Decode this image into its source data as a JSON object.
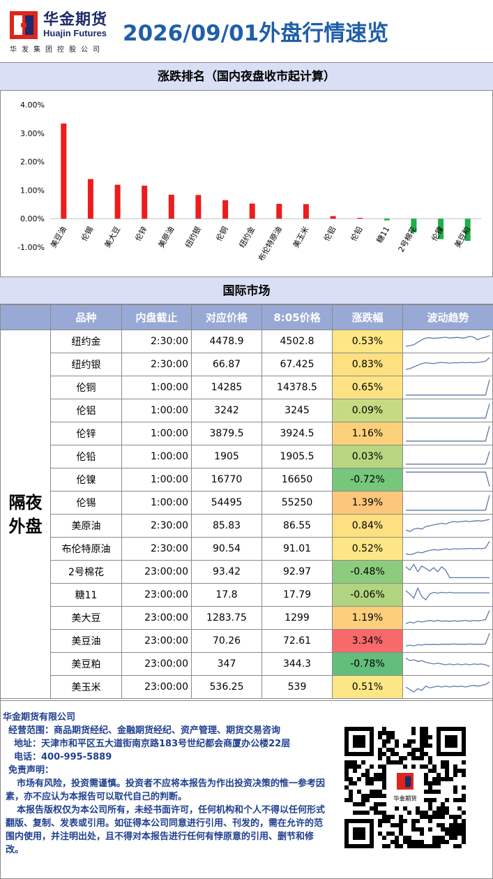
{
  "header": {
    "logo_cn": "华金期货",
    "logo_en": "Huajin Futures",
    "logo_sub": "华发集团控股公司",
    "title": "2026/09/01外盘行情速览"
  },
  "section1_title": "涨跌排名（国内夜盘收市起计算）",
  "section2_title": "国际市场",
  "colors": {
    "up": "#ee1c1c",
    "down": "#1fae4a",
    "header_bg": "#99a9d6",
    "band_bg": "#d9dff5",
    "title_blue": "#1f5fa8"
  },
  "chart_data": {
    "type": "bar",
    "categories": [
      "美豆油",
      "伦锡",
      "美大豆",
      "伦锌",
      "美原油",
      "纽约银",
      "伦铜",
      "纽约金",
      "布伦特原油",
      "美玉米",
      "伦铝",
      "伦铅",
      "糖11",
      "2号棉花",
      "伦镍",
      "美豆粕"
    ],
    "values": [
      3.34,
      1.39,
      1.19,
      1.16,
      0.84,
      0.83,
      0.65,
      0.53,
      0.52,
      0.51,
      0.09,
      0.03,
      -0.06,
      -0.48,
      -0.72,
      -0.78
    ],
    "ylim": [
      -1.0,
      4.0
    ],
    "yticks": [
      "4.00%",
      "3.00%",
      "2.00%",
      "1.00%",
      "0.00%",
      "-1.00%"
    ],
    "ytick_values": [
      4,
      3,
      2,
      1,
      0,
      -1
    ]
  },
  "table": {
    "headers": [
      "品种",
      "内盘截止",
      "对应价格",
      "8:05价格",
      "涨跌幅",
      "波动趋势"
    ],
    "group_label_line1": "隔夜",
    "group_label_line2": "外盘",
    "rows": [
      {
        "name": "纽约金",
        "cutoff": "2:30:00",
        "ref": "4478.9",
        "price": "4502.8",
        "chg": "0.53%",
        "bg": "#fde685",
        "trend": [
          0.2,
          0.25,
          0.3,
          0.45,
          0.6,
          0.7,
          0.72,
          0.68,
          0.7,
          0.72,
          0.75,
          0.7,
          0.72,
          0.74,
          0.7,
          0.72,
          0.8,
          0.75,
          0.6,
          0.7,
          0.75,
          0.85
        ]
      },
      {
        "name": "纽约银",
        "cutoff": "2:30:00",
        "ref": "66.87",
        "price": "67.425",
        "chg": "0.83%",
        "bg": "#fde07f",
        "trend": [
          0.2,
          0.25,
          0.35,
          0.45,
          0.55,
          0.6,
          0.58,
          0.55,
          0.6,
          0.62,
          0.6,
          0.58,
          0.6,
          0.6,
          0.62,
          0.6,
          0.62,
          0.6,
          0.62,
          0.65,
          0.7,
          0.9
        ]
      },
      {
        "name": "伦铜",
        "cutoff": "1:00:00",
        "ref": "14285",
        "price": "14378.5",
        "chg": "0.65%",
        "bg": "#fde383",
        "trend": [
          0.05,
          0.05,
          0.05,
          0.05,
          0.05,
          0.05,
          0.05,
          0.05,
          0.05,
          0.05,
          0.05,
          0.05,
          0.05,
          0.05,
          0.05,
          0.05,
          0.05,
          0.05,
          0.05,
          0.05,
          0.05,
          0.95
        ]
      },
      {
        "name": "伦铝",
        "cutoff": "1:00:00",
        "ref": "3242",
        "price": "3245",
        "chg": "0.09%",
        "bg": "#c6db81",
        "trend": [
          0.05,
          0.05,
          0.05,
          0.05,
          0.05,
          0.05,
          0.05,
          0.05,
          0.05,
          0.05,
          0.05,
          0.05,
          0.05,
          0.05,
          0.05,
          0.05,
          0.05,
          0.05,
          0.05,
          0.05,
          0.05,
          0.9
        ]
      },
      {
        "name": "伦锌",
        "cutoff": "1:00:00",
        "ref": "3879.5",
        "price": "3924.5",
        "chg": "1.16%",
        "bg": "#fdd07c",
        "trend": [
          0.05,
          0.05,
          0.05,
          0.05,
          0.05,
          0.05,
          0.05,
          0.05,
          0.05,
          0.05,
          0.05,
          0.05,
          0.05,
          0.05,
          0.05,
          0.05,
          0.05,
          0.05,
          0.05,
          0.05,
          0.05,
          0.95
        ]
      },
      {
        "name": "伦铅",
        "cutoff": "1:00:00",
        "ref": "1905",
        "price": "1905.5",
        "chg": "0.03%",
        "bg": "#b8d680",
        "trend": [
          0.05,
          0.05,
          0.05,
          0.05,
          0.05,
          0.05,
          0.05,
          0.05,
          0.05,
          0.05,
          0.05,
          0.05,
          0.05,
          0.05,
          0.05,
          0.05,
          0.05,
          0.05,
          0.05,
          0.05,
          0.05,
          0.8
        ]
      },
      {
        "name": "伦镍",
        "cutoff": "1:00:00",
        "ref": "16770",
        "price": "16650",
        "chg": "-0.72%",
        "bg": "#77c67c",
        "trend": [
          0.95,
          0.95,
          0.95,
          0.95,
          0.95,
          0.95,
          0.95,
          0.95,
          0.95,
          0.95,
          0.95,
          0.95,
          0.95,
          0.95,
          0.95,
          0.95,
          0.95,
          0.95,
          0.95,
          0.95,
          0.95,
          0.1
        ]
      },
      {
        "name": "伦锡",
        "cutoff": "1:00:00",
        "ref": "54495",
        "price": "55250",
        "chg": "1.39%",
        "bg": "#fdc77b",
        "trend": [
          0.05,
          0.05,
          0.05,
          0.05,
          0.05,
          0.05,
          0.05,
          0.05,
          0.05,
          0.05,
          0.05,
          0.05,
          0.05,
          0.05,
          0.05,
          0.05,
          0.05,
          0.05,
          0.05,
          0.05,
          0.05,
          0.95
        ]
      },
      {
        "name": "美原油",
        "cutoff": "2:30:00",
        "ref": "85.83",
        "price": "86.55",
        "chg": "0.84%",
        "bg": "#fde07f",
        "trend": [
          0.25,
          0.15,
          0.3,
          0.35,
          0.3,
          0.45,
          0.5,
          0.55,
          0.6,
          0.65,
          0.6,
          0.7,
          0.75,
          0.72,
          0.75,
          0.78,
          0.75,
          0.78,
          0.8,
          0.78,
          0.82,
          0.88
        ]
      },
      {
        "name": "布伦特原油",
        "cutoff": "2:30:00",
        "ref": "90.54",
        "price": "91.01",
        "chg": "0.52%",
        "bg": "#fde685",
        "trend": [
          0.2,
          0.15,
          0.2,
          0.3,
          0.25,
          0.35,
          0.4,
          0.45,
          0.42,
          0.45,
          0.5,
          0.45,
          0.5,
          0.48,
          0.5,
          0.5,
          0.52,
          0.5,
          0.52,
          0.5,
          0.55,
          0.95
        ]
      },
      {
        "name": "2号棉花",
        "cutoff": "23:00:00",
        "ref": "93.42",
        "price": "92.97",
        "chg": "-0.48%",
        "bg": "#8dcc7e",
        "trend": [
          0.8,
          0.6,
          0.95,
          0.5,
          0.85,
          0.7,
          0.55,
          0.75,
          0.5,
          0.8,
          0.6,
          0.15,
          0.15,
          0.15,
          0.15,
          0.15,
          0.15,
          0.15,
          0.15,
          0.15,
          0.15,
          0.15
        ]
      },
      {
        "name": "糖11",
        "cutoff": "23:00:00",
        "ref": "17.8",
        "price": "17.79",
        "chg": "-0.06%",
        "bg": "#b1d480",
        "trend": [
          0.75,
          0.55,
          0.3,
          0.9,
          0.4,
          0.2,
          0.55,
          0.65,
          0.6,
          0.65,
          0.62,
          0.65,
          0.62,
          0.62,
          0.62,
          0.62,
          0.62,
          0.62,
          0.62,
          0.62,
          0.62,
          0.62
        ]
      },
      {
        "name": "美大豆",
        "cutoff": "23:00:00",
        "ref": "1283.75",
        "price": "1299",
        "chg": "1.19%",
        "bg": "#fdce7c",
        "trend": [
          0.15,
          0.25,
          0.2,
          0.3,
          0.25,
          0.3,
          0.35,
          0.3,
          0.35,
          0.3,
          0.32,
          0.3,
          0.33,
          0.3,
          0.32,
          0.35,
          0.3,
          0.35,
          0.32,
          0.35,
          0.4,
          0.95
        ]
      },
      {
        "name": "美豆油",
        "cutoff": "23:00:00",
        "ref": "70.26",
        "price": "72.61",
        "chg": "3.34%",
        "bg": "#f8696b",
        "trend": [
          0.2,
          0.25,
          0.2,
          0.28,
          0.25,
          0.3,
          0.28,
          0.3,
          0.28,
          0.3,
          0.3,
          0.3,
          0.32,
          0.3,
          0.3,
          0.3,
          0.32,
          0.3,
          0.3,
          0.3,
          0.32,
          0.95
        ]
      },
      {
        "name": "美豆粕",
        "cutoff": "23:00:00",
        "ref": "347",
        "price": "344.3",
        "chg": "-0.78%",
        "bg": "#63be7b",
        "trend": [
          0.85,
          0.7,
          0.75,
          0.65,
          0.7,
          0.6,
          0.55,
          0.5,
          0.55,
          0.5,
          0.45,
          0.5,
          0.45,
          0.5,
          0.45,
          0.5,
          0.45,
          0.5,
          0.48,
          0.5,
          0.45,
          0.35
        ]
      },
      {
        "name": "美玉米",
        "cutoff": "23:00:00",
        "ref": "536.25",
        "price": "539",
        "chg": "0.51%",
        "bg": "#fde685",
        "trend": [
          0.5,
          0.35,
          0.2,
          0.4,
          0.3,
          0.55,
          0.45,
          0.5,
          0.55,
          0.5,
          0.55,
          0.5,
          0.55,
          0.52,
          0.55,
          0.5,
          0.55,
          0.6,
          0.55,
          0.6,
          0.65,
          0.8
        ]
      }
    ]
  },
  "footer": {
    "company": "华金期货有限公司",
    "scope": "经营范围：商品期货经纪、金融期货经纪、资产管理、期货交易咨询",
    "address": "地址：天津市和平区五大道街南京路183号世纪都会商厦办公楼22层",
    "phone": "电话：400-995-5889",
    "disclaimer_title": "免责声明：",
    "disclaimer_p1": "市场有风险，投资需谨慎。投资者不应将本报告为作出投资决策的惟一参考因素，亦不应认为本报告可以取代自己的判断。",
    "disclaimer_p2": "本报告版权仅为本公司所有，未经书面许可，任何机构和个人不得以任何形式翻版、复制、发表或引用。如征得本公司同意进行引用、刊发的，需在允许的范围内使用，并注明出处，且不得对本报告进行任何有悖原意的引用、删节和修改。",
    "qr_logo_text": "华金期货"
  }
}
